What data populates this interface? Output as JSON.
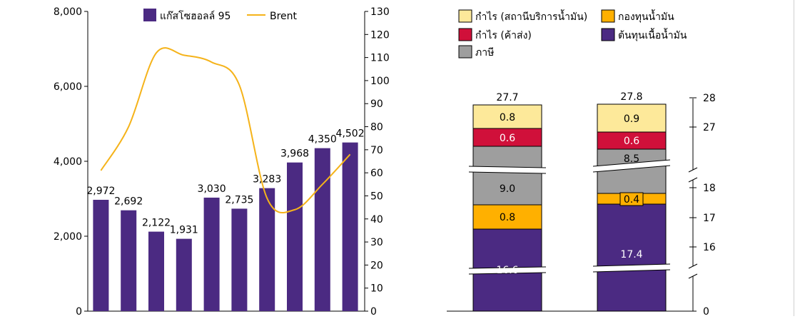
{
  "chart_data": [
    {
      "type": "bar",
      "categories": [
        "",
        "",
        "",
        "",
        "",
        "",
        "",
        "",
        "",
        ""
      ],
      "series": [
        {
          "name": "แก๊สโซฮอลล์ 95",
          "kind": "bar",
          "axis": "left",
          "color": "#4b2a82",
          "values": [
            2972,
            2692,
            2122,
            1931,
            3030,
            2735,
            3283,
            3968,
            4350,
            4502
          ],
          "labels": [
            "2,972",
            "2,692",
            "2,122",
            "1,931",
            "3,030",
            "2,735",
            "3,283",
            "3,968",
            "4,350",
            "4,502"
          ]
        },
        {
          "name": "Brent",
          "kind": "line",
          "axis": "right",
          "color": "#f5b31a",
          "values": [
            61,
            80,
            112,
            111,
            108,
            98,
            49,
            44,
            55,
            68
          ]
        }
      ],
      "y_left": {
        "min": 0,
        "max": 8000,
        "ticks": [
          "0",
          "2,000",
          "4,000",
          "6,000",
          "8,000"
        ],
        "tick_values": [
          0,
          2000,
          4000,
          6000,
          8000
        ]
      },
      "y_right": {
        "min": 0,
        "max": 130,
        "ticks": [
          "0",
          "10",
          "20",
          "30",
          "40",
          "50",
          "60",
          "70",
          "80",
          "90",
          "100",
          "110",
          "120",
          "130"
        ],
        "tick_values": [
          0,
          10,
          20,
          30,
          40,
          50,
          60,
          70,
          80,
          90,
          100,
          110,
          120,
          130
        ]
      },
      "legend_position": "top-center",
      "grid": false
    },
    {
      "type": "bar",
      "stacked": true,
      "broken_axis": true,
      "categories": [
        "",
        ""
      ],
      "series": [
        {
          "name": "ต้นทุนเนื้อน้ำมัน",
          "color": "#4b2a82",
          "values": [
            16.6,
            17.4
          ],
          "labels": [
            "16.6",
            "17.4"
          ]
        },
        {
          "name": "กองทุนน้ำมัน",
          "color": "#ffb000",
          "values": [
            0.8,
            0.4
          ],
          "labels": [
            "0.8",
            "0.4"
          ]
        },
        {
          "name": "ภาษี",
          "color": "#9e9e9e",
          "values": [
            9.0,
            8.5
          ],
          "labels": [
            "9.0",
            "8.5"
          ]
        },
        {
          "name": "กำไร (ค้าส่ง)",
          "color": "#d0103a",
          "values": [
            0.6,
            0.6
          ],
          "labels": [
            "0.6",
            "0.6"
          ]
        },
        {
          "name": "กำไร (สถานีบริการน้ำมัน)",
          "color": "#fde99a",
          "values": [
            0.8,
            0.9
          ],
          "labels": [
            "0.8",
            "0.9"
          ]
        }
      ],
      "totals": [
        "27.7",
        "27.8"
      ],
      "y_right": {
        "ticks": [
          "0",
          "16",
          "17",
          "18",
          "27",
          "28"
        ]
      },
      "legend_position": "top",
      "grid": false
    }
  ]
}
